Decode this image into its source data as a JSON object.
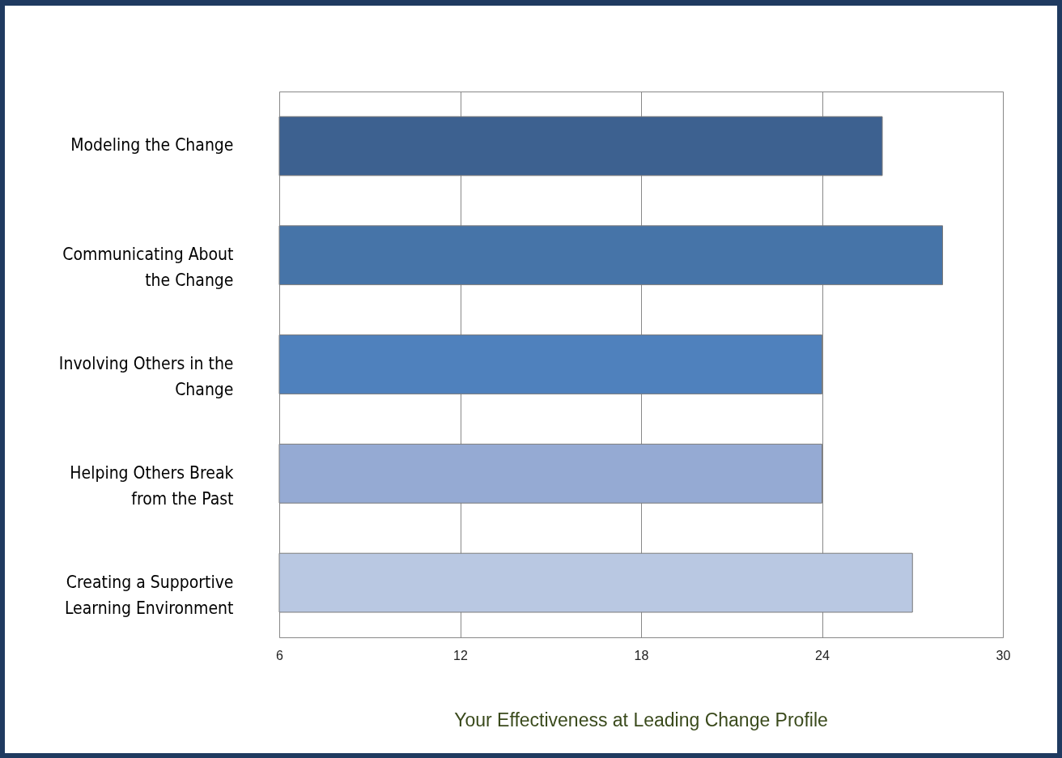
{
  "chart_data": {
    "type": "bar",
    "orientation": "horizontal",
    "title": "Your Effectiveness at Leading Change Profile",
    "categories": [
      "Modeling the Change",
      "Communicating About\nthe Change",
      "Involving Others in the\nChange",
      "Helping Others Break\nfrom the Past",
      "Creating a Supportive\nLearning Environment"
    ],
    "values": [
      26,
      28,
      24,
      24,
      27
    ],
    "colors": [
      "#3d6190",
      "#4674a8",
      "#4f81bd",
      "#95aad3",
      "#b9c8e2"
    ],
    "xlim": [
      6,
      30
    ],
    "xticks": [
      6,
      12,
      18,
      24,
      30
    ],
    "grid": "x"
  }
}
